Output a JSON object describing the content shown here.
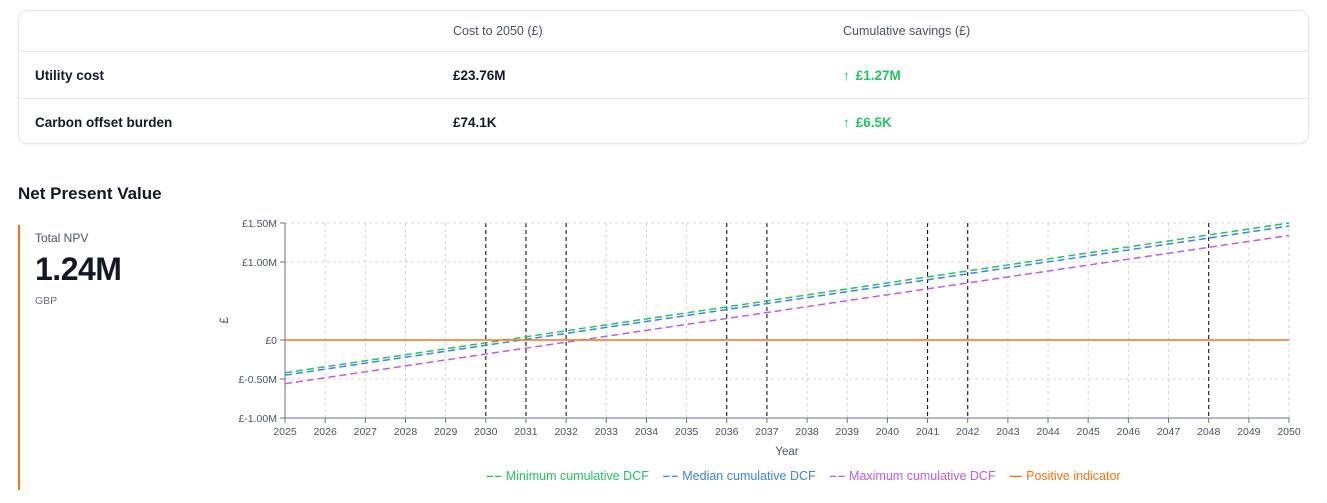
{
  "table": {
    "headers": [
      "",
      "Cost to 2050 (£)",
      "Cumulative savings (£)"
    ],
    "rows": [
      {
        "label": "Utility cost",
        "cost": "£23.76M",
        "savings": "£1.27M"
      },
      {
        "label": "Carbon offset burden",
        "cost": "£74.1K",
        "savings": "£6.5K"
      }
    ],
    "savings_arrow": "↑"
  },
  "section_title": "Net Present Value",
  "npv": {
    "label": "Total NPV",
    "value": "1.24M",
    "unit": "GBP",
    "accent_color": "#f97316"
  },
  "chart_data": {
    "type": "line",
    "xlabel": "Year",
    "ylabel": "£",
    "x": [
      2025,
      2026,
      2027,
      2028,
      2029,
      2030,
      2031,
      2032,
      2033,
      2034,
      2035,
      2036,
      2037,
      2038,
      2039,
      2040,
      2041,
      2042,
      2043,
      2044,
      2045,
      2046,
      2047,
      2048,
      2049,
      2050
    ],
    "ylim": [
      -1000000,
      1500000
    ],
    "yticks": [
      {
        "value": 1500000,
        "label": "£1.50M"
      },
      {
        "value": 1000000,
        "label": "£1.00M"
      },
      {
        "value": 0,
        "label": "£0"
      },
      {
        "value": -500000,
        "label": "£-0.50M"
      },
      {
        "value": -1000000,
        "label": "£-1.00M"
      }
    ],
    "highlight_years": [
      2030,
      2031,
      2032,
      2036,
      2037,
      2041,
      2042,
      2048
    ],
    "series": [
      {
        "name": "Minimum cumulative DCF",
        "color": "#22c55e",
        "dash": true,
        "y_start": -420000,
        "y_end": 1500000
      },
      {
        "name": "Median cumulative DCF",
        "color": "#3b82f6",
        "dash": true,
        "y_start": -450000,
        "y_end": 1460000
      },
      {
        "name": "Maximum cumulative DCF",
        "color": "#c05af0",
        "dash": true,
        "y_start": -560000,
        "y_end": 1340000
      },
      {
        "name": "Positive indicator",
        "color": "#f97316",
        "dash": false,
        "y_start": 0,
        "y_end": 0
      }
    ]
  }
}
